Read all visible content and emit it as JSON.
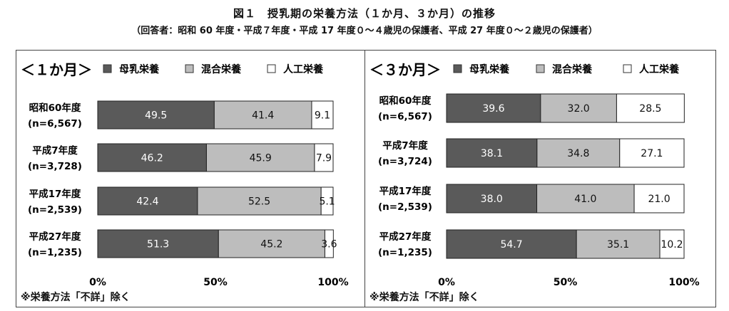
{
  "figure": {
    "title": "図１　授乳期の栄養方法（１か月、３か月）の推移",
    "subtitle": "（回答者：昭和 60 年度・平成７年度・平成 17 年度０～４歳児の保護者、平成 27 年度０～２歳児の保護者）"
  },
  "chart_data": [
    {
      "type": "bar",
      "orientation": "horizontal",
      "stacked": true,
      "title": "＜１か月＞",
      "categories": [
        [
          "昭和60年度",
          "(n=6,567)"
        ],
        [
          "平成7年度",
          "(n=3,728)"
        ],
        [
          "平成17年度",
          "(n=2,539)"
        ],
        [
          "平成27年度",
          "(n=1,235)"
        ]
      ],
      "series": [
        {
          "name": "母乳栄養",
          "values": [
            49.5,
            46.2,
            42.4,
            51.3
          ],
          "color": "#5a5a5a",
          "label_color": "#ffffff"
        },
        {
          "name": "混合栄養",
          "values": [
            41.4,
            45.9,
            52.5,
            45.2
          ],
          "color": "#bdbdbd",
          "label_color": "#111111"
        },
        {
          "name": "人工栄養",
          "values": [
            9.1,
            7.9,
            5.1,
            3.6
          ],
          "color": "#ffffff",
          "label_color": "#111111"
        }
      ],
      "xlim": [
        0,
        100
      ],
      "xticks": [
        "0%",
        "50%",
        "100%"
      ],
      "legend_position": "top",
      "footnote": "※栄養方法「不詳」除く"
    },
    {
      "type": "bar",
      "orientation": "horizontal",
      "stacked": true,
      "title": "＜３か月＞",
      "categories": [
        [
          "昭和60年度",
          "(n=6,567)"
        ],
        [
          "平成7年度",
          "(n=3,724)"
        ],
        [
          "平成17年度",
          "(n=2,539)"
        ],
        [
          "平成27年度",
          "(n=1,235)"
        ]
      ],
      "series": [
        {
          "name": "母乳栄養",
          "values": [
            39.6,
            38.1,
            38.0,
            54.7
          ],
          "color": "#5a5a5a",
          "label_color": "#ffffff"
        },
        {
          "name": "混合栄養",
          "values": [
            32.0,
            34.8,
            41.0,
            35.1
          ],
          "color": "#bdbdbd",
          "label_color": "#111111"
        },
        {
          "name": "人工栄養",
          "values": [
            28.5,
            27.1,
            21.0,
            10.2
          ],
          "color": "#ffffff",
          "label_color": "#111111"
        }
      ],
      "xlim": [
        0,
        100
      ],
      "xticks": [
        "0%",
        "50%",
        "100%"
      ],
      "legend_position": "top",
      "footnote": "※栄養方法「不詳」除く"
    }
  ]
}
